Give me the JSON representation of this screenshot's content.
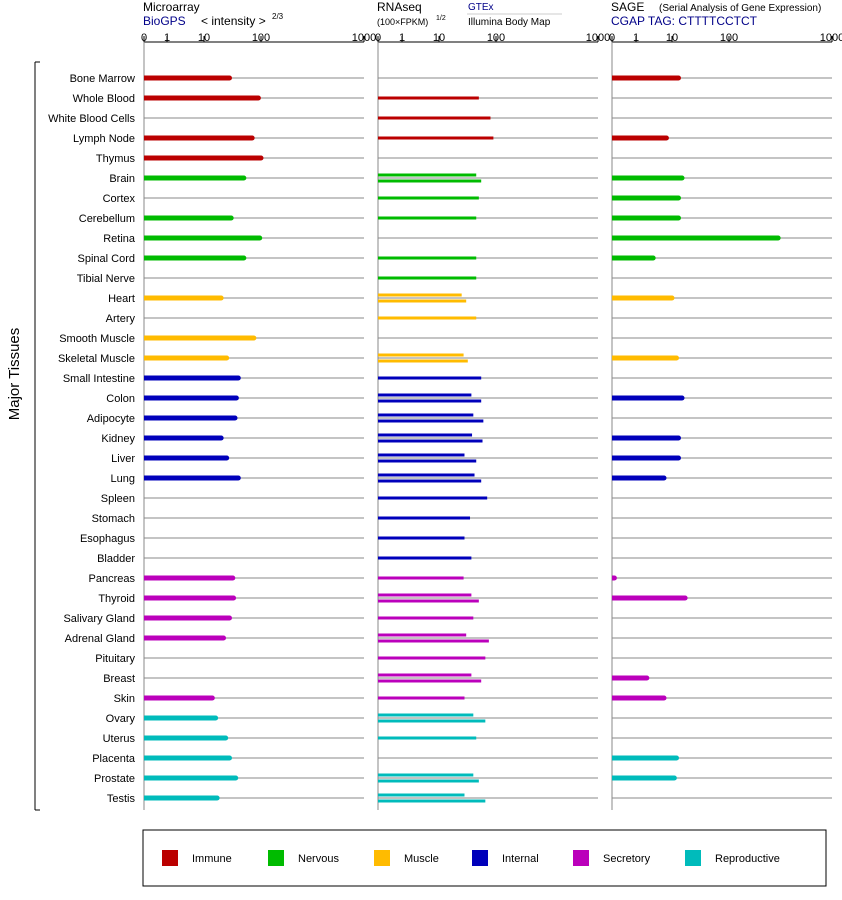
{
  "headers": {
    "microarray": {
      "title": "Microarray",
      "source": "BioGPS",
      "unit": "< intensity >",
      "exponent": "2/3"
    },
    "rnaseq": {
      "title": "RNAseq",
      "unit": "(100×FPKM)",
      "exponent": "1/2",
      "source_a": "GTEx",
      "source_b": "Illumina Body Map"
    },
    "sage": {
      "title": "SAGE",
      "subtitle": "(Serial Analysis of Gene Expression)",
      "tag": "CGAP TAG: CTTTTCCTCT"
    }
  },
  "axis": {
    "ticks": [
      0,
      1,
      10,
      100,
      1000
    ],
    "tick_labels": [
      "0",
      "1",
      "10",
      "100",
      "1000"
    ]
  },
  "side_label": "Major Tissues",
  "colors": {
    "Immune": "#bb0000",
    "Nervous": "#00bb00",
    "Muscle": "#ffbb00",
    "Internal": "#0000bb",
    "Secretory": "#bb00bb",
    "Reproductive": "#00bbbb"
  },
  "legend": [
    {
      "label": "Immune",
      "color": "#bb0000"
    },
    {
      "label": "Nervous",
      "color": "#00bb00"
    },
    {
      "label": "Muscle",
      "color": "#ffbb00"
    },
    {
      "label": "Internal",
      "color": "#0000bb"
    },
    {
      "label": "Secretory",
      "color": "#bb00bb"
    },
    {
      "label": "Reproductive",
      "color": "#00bbbb"
    }
  ],
  "chart_data": {
    "type": "bar",
    "orientation": "horizontal",
    "scale": "log-like (0,1,10,100,1000)",
    "panels": [
      "Microarray",
      "RNAseq",
      "SAGE"
    ],
    "tissues": [
      {
        "name": "Bone Marrow",
        "group": "Immune",
        "microarray": 28,
        "rnaseq": [],
        "sage": 13
      },
      {
        "name": "Whole Blood",
        "group": "Immune",
        "microarray": 90,
        "rnaseq": [
          50
        ],
        "sage": null
      },
      {
        "name": "White Blood Cells",
        "group": "Immune",
        "microarray": null,
        "rnaseq": [
          80
        ],
        "sage": null
      },
      {
        "name": "Lymph Node",
        "group": "Immune",
        "microarray": 70,
        "rnaseq": [
          90
        ],
        "sage": 7
      },
      {
        "name": "Thymus",
        "group": "Immune",
        "microarray": 100,
        "rnaseq": [],
        "sage": null
      },
      {
        "name": "Brain",
        "group": "Nervous",
        "microarray": 50,
        "rnaseq": [
          45,
          55
        ],
        "sage": 15
      },
      {
        "name": "Cortex",
        "group": "Nervous",
        "microarray": null,
        "rnaseq": [
          50
        ],
        "sage": 13
      },
      {
        "name": "Cerebellum",
        "group": "Nervous",
        "microarray": 30,
        "rnaseq": [
          45
        ],
        "sage": 13
      },
      {
        "name": "Retina",
        "group": "Nervous",
        "microarray": 95,
        "rnaseq": [],
        "sage": 300
      },
      {
        "name": "Spinal Cord",
        "group": "Nervous",
        "microarray": 50,
        "rnaseq": [
          45
        ],
        "sage": 3
      },
      {
        "name": "Tibial Nerve",
        "group": "Nervous",
        "microarray": null,
        "rnaseq": [
          45
        ],
        "sage": null
      },
      {
        "name": "Heart",
        "group": "Muscle",
        "microarray": 20,
        "rnaseq": [
          25,
          30
        ],
        "sage": 10
      },
      {
        "name": "Artery",
        "group": "Muscle",
        "microarray": null,
        "rnaseq": [
          45
        ],
        "sage": null
      },
      {
        "name": "Smooth Muscle",
        "group": "Muscle",
        "microarray": 75,
        "rnaseq": [],
        "sage": null
      },
      {
        "name": "Skeletal Muscle",
        "group": "Muscle",
        "microarray": 25,
        "rnaseq": [
          27,
          32
        ],
        "sage": 12
      },
      {
        "name": "Small Intestine",
        "group": "Internal",
        "microarray": 40,
        "rnaseq": [
          55
        ],
        "sage": null
      },
      {
        "name": "Colon",
        "group": "Internal",
        "microarray": 37,
        "rnaseq": [
          37,
          55
        ],
        "sage": 15
      },
      {
        "name": "Adipocyte",
        "group": "Internal",
        "microarray": 35,
        "rnaseq": [
          40,
          60
        ],
        "sage": null
      },
      {
        "name": "Kidney",
        "group": "Internal",
        "microarray": 20,
        "rnaseq": [
          38,
          58
        ],
        "sage": 13
      },
      {
        "name": "Liver",
        "group": "Internal",
        "microarray": 25,
        "rnaseq": [
          28,
          45
        ],
        "sage": 13
      },
      {
        "name": "Lung",
        "group": "Internal",
        "microarray": 40,
        "rnaseq": [
          42,
          55
        ],
        "sage": 6
      },
      {
        "name": "Spleen",
        "group": "Internal",
        "microarray": null,
        "rnaseq": [
          70
        ],
        "sage": null
      },
      {
        "name": "Stomach",
        "group": "Internal",
        "microarray": null,
        "rnaseq": [
          35
        ],
        "sage": null
      },
      {
        "name": "Esophagus",
        "group": "Internal",
        "microarray": null,
        "rnaseq": [
          28
        ],
        "sage": null
      },
      {
        "name": "Bladder",
        "group": "Internal",
        "microarray": null,
        "rnaseq": [
          37
        ],
        "sage": null
      },
      {
        "name": "Pancreas",
        "group": "Secretory",
        "microarray": 32,
        "rnaseq": [
          27
        ],
        "sage": 0.1
      },
      {
        "name": "Thyroid",
        "group": "Secretory",
        "microarray": 33,
        "rnaseq": [
          37,
          50
        ],
        "sage": 17
      },
      {
        "name": "Salivary Gland",
        "group": "Secretory",
        "microarray": 28,
        "rnaseq": [
          40
        ],
        "sage": null
      },
      {
        "name": "Adrenal Gland",
        "group": "Secretory",
        "microarray": 22,
        "rnaseq": [
          30,
          75
        ],
        "sage": null
      },
      {
        "name": "Pituitary",
        "group": "Secretory",
        "microarray": null,
        "rnaseq": [
          65
        ],
        "sage": null
      },
      {
        "name": "Breast",
        "group": "Secretory",
        "microarray": null,
        "rnaseq": [
          37,
          55
        ],
        "sage": 2
      },
      {
        "name": "Skin",
        "group": "Secretory",
        "microarray": 14,
        "rnaseq": [
          28
        ],
        "sage": 6
      },
      {
        "name": "Ovary",
        "group": "Reproductive",
        "microarray": 16,
        "rnaseq": [
          40,
          65
        ],
        "sage": null
      },
      {
        "name": "Uterus",
        "group": "Reproductive",
        "microarray": 24,
        "rnaseq": [
          45
        ],
        "sage": null
      },
      {
        "name": "Placenta",
        "group": "Reproductive",
        "microarray": 28,
        "rnaseq": [],
        "sage": 12
      },
      {
        "name": "Prostate",
        "group": "Reproductive",
        "microarray": 36,
        "rnaseq": [
          40,
          50
        ],
        "sage": 11
      },
      {
        "name": "Testis",
        "group": "Reproductive",
        "microarray": 17,
        "rnaseq": [
          28,
          65
        ],
        "sage": null
      }
    ]
  }
}
